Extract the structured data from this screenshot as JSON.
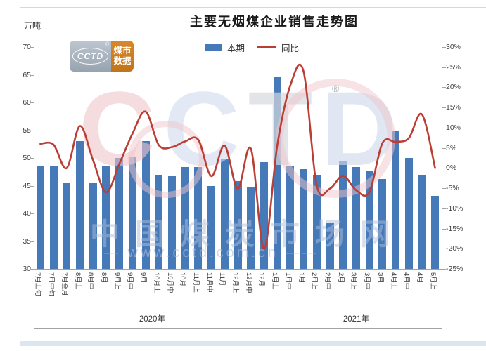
{
  "title": "主要无烟煤企业销售走势图",
  "unit_label": "万吨",
  "legend": {
    "bar_label": "本期",
    "line_label": "同比"
  },
  "logo": {
    "brand": "CCTD",
    "registered": "®",
    "tagline_line1": "煤市",
    "tagline_line2": "数据"
  },
  "watermark": {
    "letters": [
      "C",
      "C",
      "T",
      "D"
    ],
    "registered": "®",
    "site_name": "中国煤炭市场网",
    "site_url": "— www.cctd.com.cn ——"
  },
  "colors": {
    "bar": "#4579b8",
    "line": "#bc3d34",
    "axis": "#a3a3a3",
    "tick_text": "#404040",
    "frame_line": "#d8d8d8",
    "bottom_strip": "#dce6f1",
    "logo_gray_1": "#bdc6d0",
    "logo_gray_2": "#97a3b0",
    "logo_orange_1": "#d8882b",
    "logo_orange_2": "#c0751a",
    "watermark_pink": "rgba(240,198,204,0.5)",
    "watermark_letter_colors": [
      "rgba(238,196,201,0.6)",
      "rgba(206,217,236,0.6)",
      "rgba(214,216,221,0.7)",
      "rgba(207,217,235,0.65)"
    ]
  },
  "chart_data": {
    "type": "bar+line combo",
    "title": "主要无烟煤企业销售走势图",
    "categories": [
      "7月上旬",
      "7月中旬",
      "7月全月",
      "8月上",
      "8月中",
      "8月",
      "9月上",
      "9月中",
      "9月",
      "10月上",
      "10月中",
      "10月",
      "11月上",
      "11月中",
      "11月",
      "12月上",
      "12月中",
      "12月",
      "1月上",
      "1月中",
      "1月",
      "2月上",
      "2月中",
      "2月",
      "3月上",
      "3月中",
      "3月",
      "4月上",
      "4月中",
      "4月",
      "5月上"
    ],
    "series": [
      {
        "name": "本期",
        "type": "bar",
        "axis": "left",
        "unit": "万吨",
        "values": [
          48.5,
          48.5,
          45.5,
          53,
          45.5,
          48.5,
          50,
          50.3,
          53,
          47,
          46.8,
          48.4,
          48.4,
          45,
          49.8,
          45.8,
          44.8,
          49.3,
          64.7,
          48.5,
          48,
          47,
          38.3,
          49.5,
          48.3,
          47.6,
          46.2,
          55,
          50,
          47,
          43.2
        ]
      },
      {
        "name": "同比",
        "type": "line",
        "axis": "right",
        "unit": "%",
        "values": [
          6,
          5.8,
          0,
          10.4,
          2,
          -6,
          1,
          8.5,
          14,
          5.7,
          5.2,
          6.6,
          7,
          -2,
          5.6,
          -5.1,
          4.8,
          -20,
          5.5,
          20.5,
          24,
          -4.2,
          -5.1,
          -1.9,
          -5.5,
          -6,
          6.2,
          6.5,
          7.4,
          13.3,
          0
        ]
      }
    ],
    "left_axis": {
      "title": "万吨",
      "min": 30,
      "max": 70,
      "ticks": [
        70,
        65,
        60,
        55,
        50,
        45,
        40,
        35,
        30
      ]
    },
    "right_axis": {
      "min": -25,
      "max": 30,
      "ticks": [
        "30%",
        "25%",
        "20%",
        "15%",
        "10%",
        "5%",
        "0%",
        "-5%",
        "-10%",
        "-15%",
        "-20%",
        "-25%"
      ]
    },
    "x_axis_groups": [
      {
        "label": "2020年",
        "count": 18
      },
      {
        "label": "2021年",
        "count": 13
      }
    ],
    "legend_position": "top-center",
    "gridlines": false
  }
}
